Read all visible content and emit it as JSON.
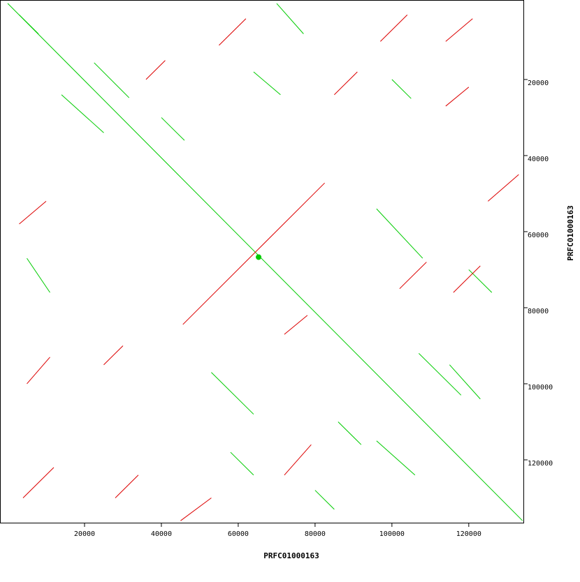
{
  "chart_data": {
    "type": "dotplot",
    "x_label": "PRFC01000163",
    "y_label": "PRFC01000163",
    "xlim": [
      -2000,
      134400
    ],
    "ylim": [
      -900,
      136700
    ],
    "xticks": [
      20000,
      40000,
      60000,
      80000,
      100000,
      120000
    ],
    "yticks": [
      20000,
      40000,
      60000,
      80000,
      100000,
      120000
    ],
    "forward": {
      "color": "#00cc00",
      "segments": [
        [
          0,
          0,
          134000,
          136000
        ],
        [
          22500,
          15600,
          31600,
          24800
        ],
        [
          14000,
          24000,
          25000,
          34000
        ],
        [
          70000,
          0,
          77000,
          8000
        ],
        [
          96000,
          54000,
          108000,
          67000
        ],
        [
          107000,
          92000,
          118000,
          103000
        ],
        [
          115000,
          95000,
          123000,
          104000
        ],
        [
          53000,
          97000,
          64000,
          108000
        ],
        [
          96000,
          115000,
          106000,
          124000
        ],
        [
          5000,
          67000,
          11000,
          76000
        ],
        [
          64000,
          18000,
          71000,
          24000
        ],
        [
          40000,
          30000,
          46000,
          36000
        ],
        [
          3000,
          3000,
          8000,
          8000
        ],
        [
          80000,
          128000,
          85000,
          133000
        ],
        [
          120000,
          70000,
          126000,
          76000
        ],
        [
          58000,
          118000,
          64000,
          124000
        ],
        [
          86000,
          110000,
          92000,
          116000
        ],
        [
          100000,
          20000,
          105000,
          25000
        ]
      ]
    },
    "reverse": {
      "color": "#dd0000",
      "segments": [
        [
          45600,
          84400,
          82500,
          47200
        ],
        [
          3000,
          58000,
          10000,
          52000
        ],
        [
          4000,
          130000,
          12000,
          122000
        ],
        [
          55000,
          11000,
          62000,
          4000
        ],
        [
          97000,
          10000,
          104000,
          3000
        ],
        [
          114000,
          10000,
          121000,
          4000
        ],
        [
          125000,
          52000,
          133000,
          45000
        ],
        [
          102000,
          75000,
          109000,
          68000
        ],
        [
          116000,
          76000,
          123000,
          69000
        ],
        [
          72000,
          124000,
          79000,
          116000
        ],
        [
          72000,
          87000,
          78000,
          82000
        ],
        [
          5000,
          100000,
          11000,
          93000
        ],
        [
          25000,
          95000,
          30000,
          90000
        ],
        [
          36000,
          20000,
          41000,
          15000
        ],
        [
          85000,
          24000,
          91000,
          18000
        ],
        [
          45000,
          136000,
          53000,
          130000
        ],
        [
          114000,
          27000,
          120000,
          22000
        ],
        [
          28000,
          130000,
          34000,
          124000
        ]
      ]
    },
    "points": {
      "color": "#00cc00",
      "values": [
        [
          65300,
          66700
        ]
      ]
    }
  }
}
